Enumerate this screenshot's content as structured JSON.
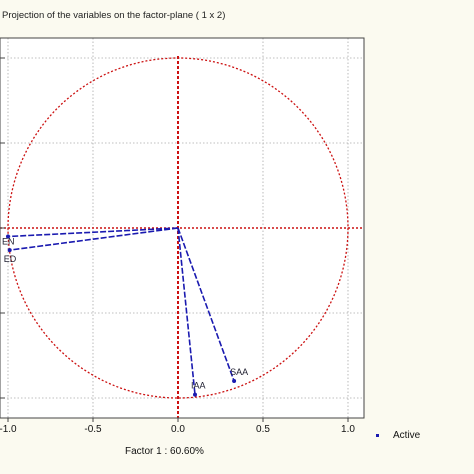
{
  "chart_data": {
    "type": "scatter",
    "title": "Projection of the variables on the factor-plane ( 1 x 2)",
    "xlabel": "Factor 1 : 60.60%",
    "ylabel": "",
    "xlim": [
      -1.1,
      1.1
    ],
    "ylim": [
      -1.1,
      1.1
    ],
    "x_ticks": [
      "-1.0",
      "-0.5",
      "0.0",
      "0.5",
      "1.0"
    ],
    "grid": true,
    "unit_circle": true,
    "legend": {
      "position": "bottom-right",
      "entries": [
        "Active"
      ]
    },
    "series": [
      {
        "name": "Active",
        "points": [
          {
            "label": "EN",
            "x": -1.0,
            "y": -0.05
          },
          {
            "label": "ED",
            "x": -0.99,
            "y": -0.13
          },
          {
            "label": "IAA",
            "x": 0.1,
            "y": -0.98
          },
          {
            "label": "SAA",
            "x": 0.33,
            "y": -0.9
          }
        ]
      }
    ],
    "colors": {
      "circle": "#cc1111",
      "vectors": "#1a1ab0",
      "grid": "#aaaaaa",
      "background": "#fbfaf0"
    }
  }
}
